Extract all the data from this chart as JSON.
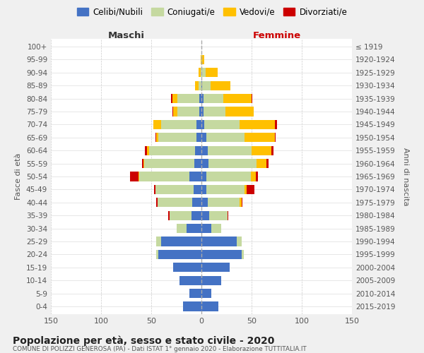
{
  "age_groups": [
    "0-4",
    "5-9",
    "10-14",
    "15-19",
    "20-24",
    "25-29",
    "30-34",
    "35-39",
    "40-44",
    "45-49",
    "50-54",
    "55-59",
    "60-64",
    "65-69",
    "70-74",
    "75-79",
    "80-84",
    "85-89",
    "90-94",
    "95-99",
    "100+"
  ],
  "birth_years": [
    "2015-2019",
    "2010-2014",
    "2005-2009",
    "2000-2004",
    "1995-1999",
    "1990-1994",
    "1985-1989",
    "1980-1984",
    "1975-1979",
    "1970-1974",
    "1965-1969",
    "1960-1964",
    "1955-1959",
    "1950-1954",
    "1945-1949",
    "1940-1944",
    "1935-1939",
    "1930-1934",
    "1925-1929",
    "1920-1924",
    "≤ 1919"
  ],
  "maschi_celibi": [
    18,
    12,
    22,
    28,
    43,
    40,
    15,
    10,
    9,
    8,
    12,
    7,
    6,
    5,
    5,
    2,
    2,
    0,
    0,
    0,
    0
  ],
  "maschi_coniugati": [
    0,
    0,
    0,
    0,
    2,
    5,
    10,
    22,
    35,
    38,
    50,
    50,
    46,
    38,
    35,
    22,
    22,
    3,
    1,
    0,
    0
  ],
  "maschi_vedovi": [
    0,
    0,
    0,
    0,
    0,
    0,
    0,
    0,
    0,
    0,
    1,
    1,
    2,
    2,
    8,
    4,
    5,
    3,
    2,
    1,
    0
  ],
  "maschi_divorziati": [
    0,
    0,
    0,
    0,
    0,
    0,
    0,
    1,
    1,
    1,
    8,
    1,
    2,
    1,
    0,
    1,
    1,
    0,
    0,
    0,
    0
  ],
  "femmine_nubili": [
    17,
    10,
    20,
    28,
    40,
    35,
    10,
    8,
    6,
    5,
    5,
    7,
    6,
    5,
    3,
    2,
    2,
    1,
    0,
    0,
    0
  ],
  "femmine_coniugate": [
    0,
    0,
    0,
    0,
    2,
    5,
    10,
    18,
    32,
    38,
    44,
    48,
    44,
    38,
    35,
    22,
    20,
    8,
    4,
    1,
    0
  ],
  "femmine_vedove": [
    0,
    0,
    0,
    0,
    0,
    0,
    0,
    0,
    2,
    2,
    5,
    10,
    20,
    30,
    35,
    28,
    28,
    20,
    12,
    2,
    0
  ],
  "femmine_divorziate": [
    0,
    0,
    0,
    0,
    0,
    0,
    0,
    1,
    1,
    8,
    2,
    2,
    2,
    1,
    2,
    0,
    1,
    0,
    0,
    0,
    0
  ],
  "colors": {
    "celibi_nubili": "#4472c4",
    "coniugati": "#c5d9a0",
    "vedovi": "#ffc000",
    "divorziati": "#cc0000"
  },
  "xlim": 150,
  "title": "Popolazione per età, sesso e stato civile - 2020",
  "subtitle": "COMUNE DI POLIZZI GENEROSA (PA) - Dati ISTAT 1° gennaio 2020 - Elaborazione TUTTITALIA.IT",
  "ylabel_left": "Fasce di età",
  "ylabel_right": "Anni di nascita",
  "xlabel_maschi": "Maschi",
  "xlabel_femmine": "Femmine",
  "legend_labels": [
    "Celibi/Nubili",
    "Coniugati/e",
    "Vedovi/e",
    "Divorziati/e"
  ],
  "bg_color": "#f0f0f0",
  "plot_bg_color": "#ffffff"
}
